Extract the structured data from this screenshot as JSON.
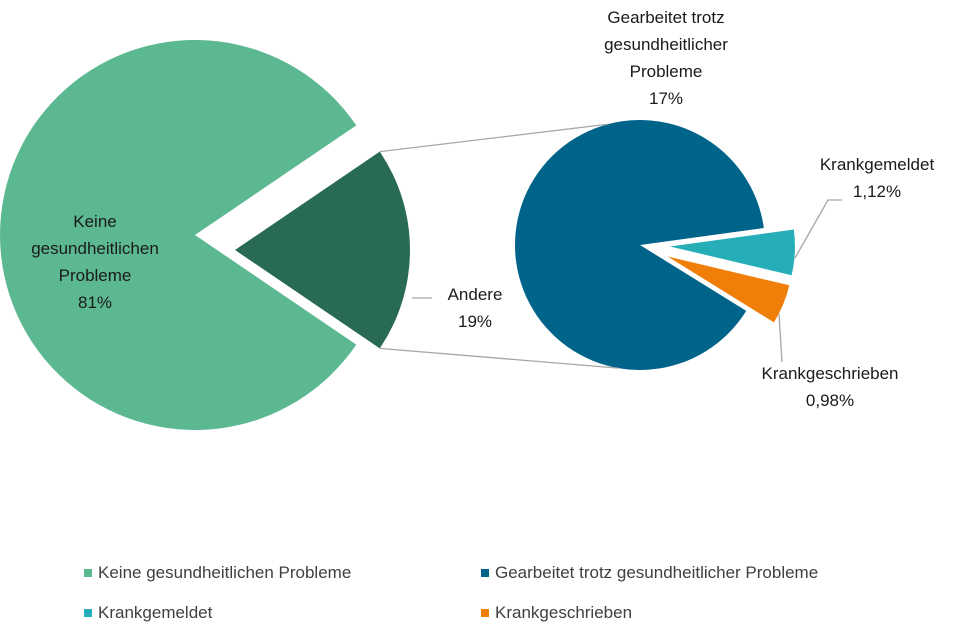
{
  "chart_data": {
    "type": "pie-of-pie",
    "categories": [
      "Keine gesundheitlichen Probleme",
      "Andere"
    ],
    "values": [
      81,
      19
    ],
    "value_labels": [
      "81%",
      "19%"
    ],
    "colors": [
      "#5cb890",
      "#286a54"
    ],
    "secondary": {
      "categories": [
        "Gearbeitet trotz gesundheitlicher Probleme",
        "Krankgemeldet",
        "Krankgeschrieben"
      ],
      "values": [
        17,
        1.12,
        0.98
      ],
      "value_labels": [
        "17%",
        "1,12%",
        "0,98%"
      ],
      "colors": [
        "#00638a",
        "#25aeb8",
        "#f07f09"
      ]
    }
  }
}
